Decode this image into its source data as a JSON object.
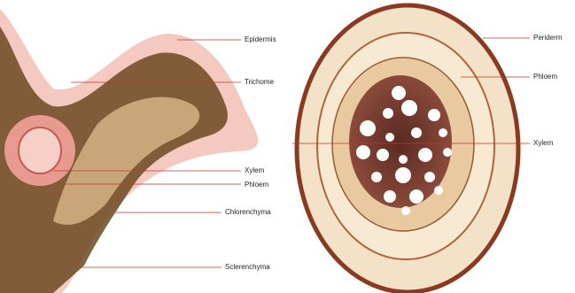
{
  "left": {
    "labels": {
      "epidermis": "Epidermis",
      "trichome": "Trichome",
      "xylem": "Xylem",
      "phloem": "Phloem",
      "chlorenchyma": "Chlorenchyma",
      "sclerenchyma": "Sclerenchyma"
    }
  },
  "right": {
    "labels": {
      "periderm": "Periderm",
      "phloem": "Phloem",
      "xylem": "Xylem"
    }
  }
}
